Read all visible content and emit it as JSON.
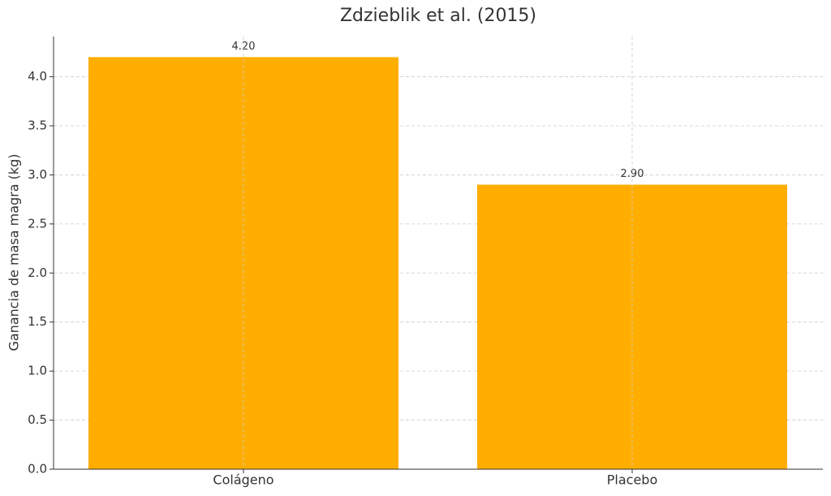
{
  "chart_data": {
    "type": "bar",
    "title": "Zdzieblik et al. (2015)",
    "y_label": "Ganancia de masa magra (kg)",
    "categories": [
      "Colágeno",
      "Placebo"
    ],
    "values": [
      4.2,
      2.9
    ],
    "value_labels": [
      "4.20",
      "2.90"
    ],
    "color": "#ffae00",
    "ylim": [
      0,
      4.41
    ],
    "yticks": [
      {
        "value": 0,
        "label": "0.0"
      },
      0.5,
      {
        "value": 1,
        "label": "1.0"
      },
      1.5,
      {
        "value": 2,
        "label": "2.0"
      },
      2.5,
      {
        "value": 3,
        "label": "3.0"
      },
      3.5,
      {
        "value": 4,
        "label": "4.0"
      }
    ],
    "grid": true
  }
}
